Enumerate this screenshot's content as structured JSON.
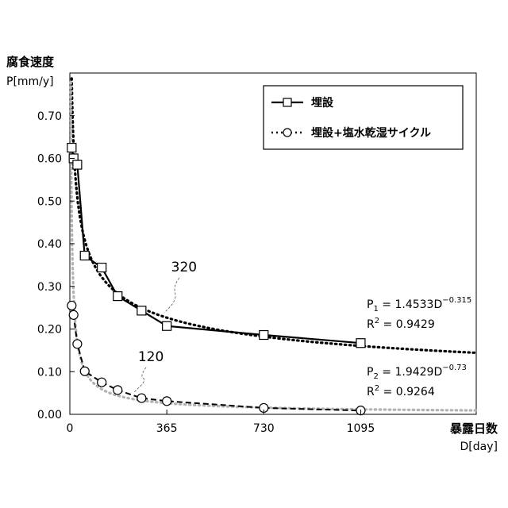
{
  "chart_data": {
    "type": "line",
    "ylabel_line1": "腐食速度",
    "ylabel_line2": "P[mm/y]",
    "xlabel_line1": "暴露日数",
    "xlabel_line2": "D[day]",
    "xlim": [
      0,
      1530
    ],
    "ylim": [
      0,
      0.8
    ],
    "xticks": [
      0,
      365,
      730,
      1095
    ],
    "xtick_labels": [
      "0",
      "365",
      "730",
      "1095"
    ],
    "yticks": [
      0,
      0.1,
      0.2,
      0.3,
      0.4,
      0.5,
      0.6,
      0.7
    ],
    "ytick_labels": [
      "0.00",
      "0.10",
      "0.20",
      "0.30",
      "0.40",
      "0.50",
      "0.60",
      "0.70"
    ],
    "grid": false,
    "legend_position": "top-right",
    "series": [
      {
        "name": "埋設",
        "marker": "square",
        "line": "solid",
        "color": "#000000",
        "x": [
          7,
          14,
          28,
          56,
          120,
          180,
          270,
          365,
          730,
          1095
        ],
        "y": [
          0.625,
          0.6,
          0.585,
          0.372,
          0.344,
          0.277,
          0.243,
          0.207,
          0.186,
          0.167
        ]
      },
      {
        "name": "埋設+塩水乾湿サイクル",
        "marker": "circle",
        "line": "dashed",
        "color": "#000000",
        "x": [
          7,
          14,
          28,
          56,
          120,
          180,
          270,
          365,
          730,
          1095
        ],
        "y": [
          0.255,
          0.233,
          0.165,
          0.101,
          0.075,
          0.057,
          0.038,
          0.031,
          0.015,
          0.009
        ]
      }
    ],
    "fits": [
      {
        "series": "埋設",
        "a": 1.4533,
        "b": -0.315,
        "color": "#000000",
        "style": "dotted",
        "equation_base": "P",
        "equation_sub": "1",
        "equation_mid": " = 1.4533D",
        "equation_exp": "−0.315",
        "r2_value": " = 0.9429"
      },
      {
        "series": "埋設+塩水乾湿サイクル",
        "a": 1.9429,
        "b": -0.73,
        "color": "#b3b3b3",
        "style": "dotted",
        "equation_base": "P",
        "equation_sub": "2",
        "equation_mid": " = 1.9429D",
        "equation_exp": "−0.73",
        "r2_value": " = 0.9264"
      }
    ],
    "annotations": [
      {
        "text": "320",
        "x": 430,
        "y": 0.335,
        "target_x": 355,
        "target_y": 0.238
      },
      {
        "text": "120",
        "x": 305,
        "y": 0.125,
        "target_x": 242,
        "target_y": 0.052
      }
    ]
  }
}
